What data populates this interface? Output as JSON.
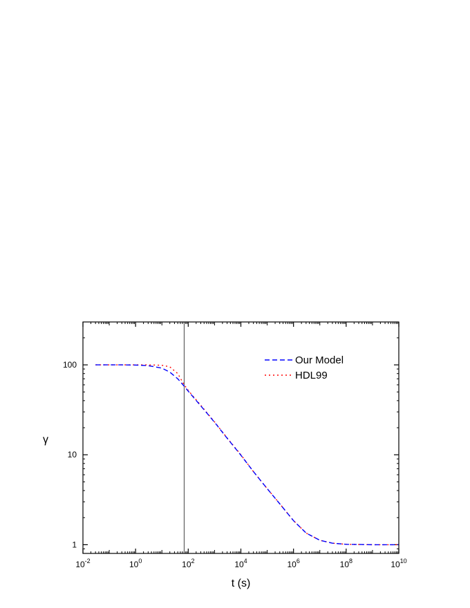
{
  "chart_data": {
    "type": "line",
    "title": "",
    "xlabel": "t (s)",
    "ylabel": "γ",
    "xscale": "log",
    "yscale": "log",
    "xlim": [
      0.01,
      10000000000
    ],
    "ylim": [
      0.8,
      300
    ],
    "grid": false,
    "legend_position": "top-right",
    "x_ticks": [
      {
        "value": 0.01,
        "base": "10",
        "exp": "-2"
      },
      {
        "value": 1,
        "base": "10",
        "exp": "0"
      },
      {
        "value": 100,
        "base": "10",
        "exp": "2"
      },
      {
        "value": 10000,
        "base": "10",
        "exp": "4"
      },
      {
        "value": 1000000,
        "base": "10",
        "exp": "6"
      },
      {
        "value": 100000000,
        "base": "10",
        "exp": "8"
      },
      {
        "value": 10000000000,
        "base": "10",
        "exp": "10"
      }
    ],
    "y_ticks": [
      {
        "value": 1,
        "label": "1"
      },
      {
        "value": 10,
        "label": "10"
      },
      {
        "value": 100,
        "label": "100"
      }
    ],
    "vertical_line_x": 70,
    "series": [
      {
        "name": "Our Model",
        "color": "#0000ff",
        "style": "dashed",
        "x": [
          0.03,
          0.1,
          0.3,
          1,
          3,
          10,
          20,
          40,
          70,
          100,
          300,
          1000,
          3000,
          10000,
          30000,
          100000,
          300000,
          1000000,
          3000000,
          10000000,
          30000000,
          100000000,
          1000000000,
          10000000000
        ],
        "y": [
          100,
          100,
          100,
          99.5,
          98,
          92,
          83,
          70,
          58,
          51,
          35,
          23,
          15.3,
          9.9,
          6.5,
          4.2,
          2.85,
          1.85,
          1.35,
          1.12,
          1.04,
          1.01,
          1.0,
          1.0
        ]
      },
      {
        "name": "HDL99",
        "color": "#ff0000",
        "style": "dotted",
        "x": [
          0.03,
          0.1,
          0.3,
          1,
          3,
          10,
          20,
          40,
          70,
          100,
          300,
          1000,
          3000,
          10000,
          30000,
          100000,
          300000,
          1000000,
          3000000,
          10000000,
          30000000,
          100000000,
          1000000000,
          10000000000
        ],
        "y": [
          100,
          100,
          100,
          100,
          100,
          99,
          95,
          80,
          60,
          52,
          35.5,
          23.2,
          15.4,
          10,
          6.5,
          4.2,
          2.85,
          1.85,
          1.35,
          1.12,
          1.04,
          1.01,
          1.0,
          1.0
        ]
      }
    ]
  }
}
